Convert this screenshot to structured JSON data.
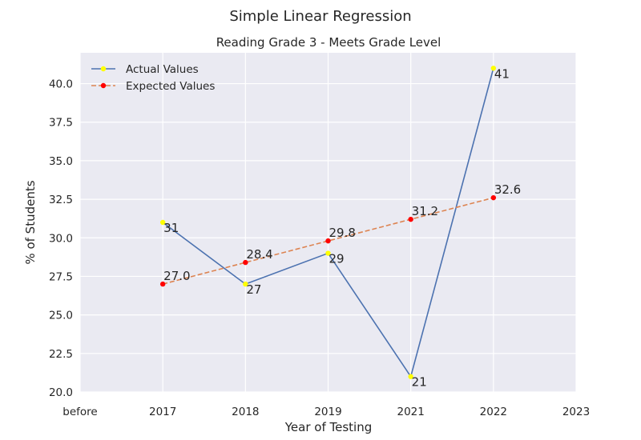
{
  "chart_data": {
    "type": "line",
    "suptitle": "Simple Linear Regression",
    "title": "Reading Grade 3 - Meets Grade Level",
    "xlabel": "Year of Testing",
    "ylabel": "% of Students",
    "x_tick_labels": [
      "before",
      "2017",
      "2018",
      "2019",
      "2021",
      "2022",
      "2023"
    ],
    "categories": [
      "2017",
      "2018",
      "2019",
      "2021",
      "2022"
    ],
    "ylim": [
      20.0,
      42.0
    ],
    "y_ticks": [
      "20.0",
      "22.5",
      "25.0",
      "27.5",
      "30.0",
      "32.5",
      "35.0",
      "37.5",
      "40.0"
    ],
    "grid": true,
    "legend_position": "top-left",
    "series": [
      {
        "name": "Actual Values",
        "values": [
          31,
          27,
          29,
          21,
          41
        ],
        "labels": [
          "31",
          "27",
          "29",
          "21",
          "41"
        ],
        "line_color": "#4c72b0",
        "marker_color": "#ffff00",
        "line_style": "solid"
      },
      {
        "name": "Expected Values",
        "values": [
          27.0,
          28.4,
          29.8,
          31.2,
          32.6
        ],
        "labels": [
          "27.0",
          "28.4",
          "29.8",
          "31.2",
          "32.6"
        ],
        "line_color": "#dd8452",
        "marker_color": "#ff0000",
        "line_style": "dashed"
      }
    ],
    "colors": {
      "plot_background": "#eaeaf2",
      "grid": "#ffffff"
    }
  }
}
